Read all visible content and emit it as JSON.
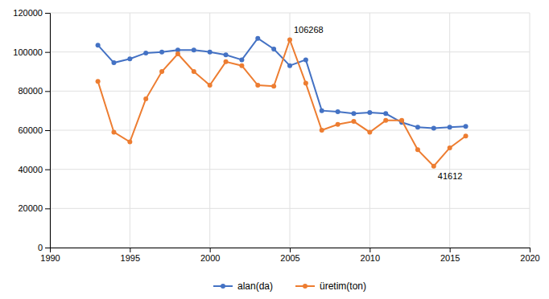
{
  "chart_data": {
    "type": "line",
    "x": [
      1993,
      1994,
      1995,
      1996,
      1997,
      1998,
      1999,
      2000,
      2001,
      2002,
      2003,
      2004,
      2005,
      2006,
      2007,
      2008,
      2009,
      2010,
      2011,
      2012,
      2013,
      2014,
      2015,
      2016
    ],
    "series": [
      {
        "name": "alan(da)",
        "color": "#4472c4",
        "values": [
          103500,
          94500,
          96500,
          99500,
          100000,
          101000,
          101000,
          100000,
          98500,
          96000,
          107000,
          101500,
          93000,
          96000,
          70000,
          69500,
          68500,
          69000,
          68500,
          64000,
          61500,
          61000,
          61500,
          62000
        ]
      },
      {
        "name": "üretim(ton)",
        "color": "#ed7d31",
        "values": [
          85000,
          59000,
          54000,
          76000,
          90000,
          99000,
          90000,
          83000,
          95000,
          93000,
          83000,
          82500,
          106268,
          84000,
          60000,
          63000,
          64500,
          59000,
          65000,
          65000,
          50000,
          41612,
          51000,
          57000
        ]
      }
    ],
    "marker": "circle",
    "xlim": [
      1990,
      2020
    ],
    "xticks": [
      1990,
      1995,
      2000,
      2005,
      2010,
      2015,
      2020
    ],
    "ylim": [
      0,
      120000
    ],
    "yticks": [
      0,
      20000,
      40000,
      60000,
      80000,
      100000,
      120000
    ],
    "grid": true,
    "legend": "bottom",
    "annotations": [
      {
        "text": "106268",
        "x": 2005,
        "y": 106268
      },
      {
        "text": "41612",
        "x": 2014,
        "y": 41612
      }
    ]
  }
}
